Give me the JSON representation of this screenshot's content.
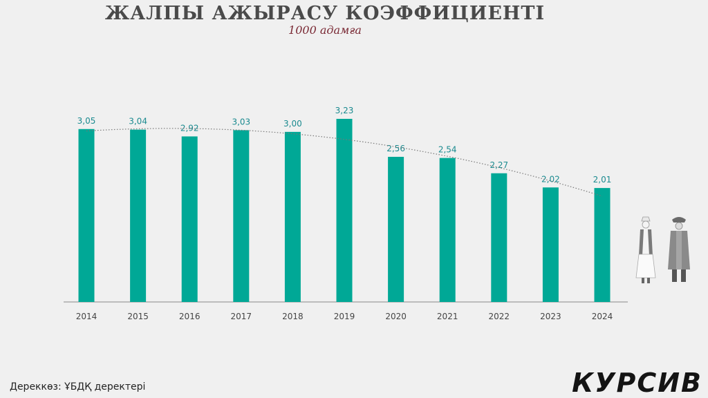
{
  "header": {
    "title": "ЖАЛПЫ АЖЫРАСУ КОЭФФИЦИЕНТІ",
    "subtitle": "1000 адамға"
  },
  "footer": {
    "source": "Дереккөз: ҰБДҚ деректері",
    "logo": "КУРСИВ"
  },
  "colors": {
    "bar": "#00a896",
    "label": "#1a8a8f",
    "axis": "#888888",
    "trend": "#777777"
  },
  "illustration": {
    "icons": [
      "woman-in-traditional-dress-icon",
      "man-in-traditional-dress-icon"
    ]
  },
  "chart_data": {
    "type": "bar",
    "categories": [
      "2014",
      "2015",
      "2016",
      "2017",
      "2018",
      "2019",
      "2020",
      "2021",
      "2022",
      "2023",
      "2024"
    ],
    "values": [
      3.05,
      3.04,
      2.92,
      3.03,
      3.0,
      3.23,
      2.56,
      2.54,
      2.27,
      2.02,
      2.01
    ],
    "value_labels": [
      "3,05",
      "3,04",
      "2,92",
      "3,03",
      "3,00",
      "3,23",
      "2,56",
      "2,54",
      "2,27",
      "2,02",
      "2,01"
    ],
    "title": "ЖАЛПЫ АЖЫРАСУ КОЭФФИЦИЕНТІ",
    "subtitle": "1000 адамға",
    "ylim": [
      0,
      3.23
    ],
    "grid": false,
    "legend": "none",
    "trendline": "polynomial, dotted"
  }
}
